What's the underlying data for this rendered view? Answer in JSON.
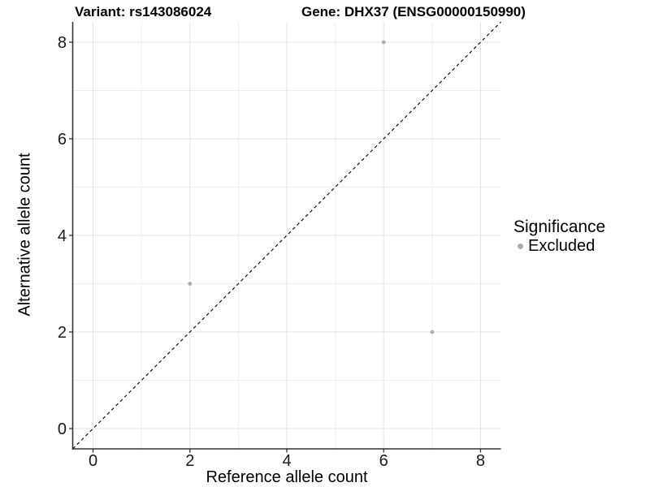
{
  "chart_data": {
    "type": "scatter",
    "titles": {
      "variant": "Variant: rs143086024",
      "gene": "Gene: DHX37 (ENSG00000150990)"
    },
    "xlabel": "Reference allele count",
    "ylabel": "Alternative allele count",
    "xlim": [
      -0.42,
      8.42
    ],
    "ylim": [
      -0.42,
      8.42
    ],
    "x_major_ticks": [
      0,
      2,
      4,
      6,
      8
    ],
    "y_major_ticks": [
      0,
      2,
      4,
      6,
      8
    ],
    "x_minor_gridlines": [
      1,
      3,
      5,
      7
    ],
    "y_minor_gridlines": [
      1,
      3,
      5,
      7
    ],
    "grid": "major and minor, light gray on white",
    "identity_line": {
      "slope": 1,
      "intercept": 0,
      "style": "dashed",
      "color": "#000000"
    },
    "series": [
      {
        "name": "Excluded",
        "color": "#ababab",
        "points": [
          [
            2,
            3
          ],
          [
            6,
            8
          ],
          [
            7,
            2
          ]
        ]
      }
    ],
    "legend": {
      "title": "Significance",
      "position": "right",
      "items": [
        {
          "label": "Excluded",
          "color": "#ababab"
        }
      ]
    }
  },
  "colors": {
    "grid_major": "#e3e3e3",
    "grid_minor": "#eeeeee",
    "axis_line": "#333333",
    "tick_label": "#1a1a1a",
    "point": "#ababab"
  }
}
